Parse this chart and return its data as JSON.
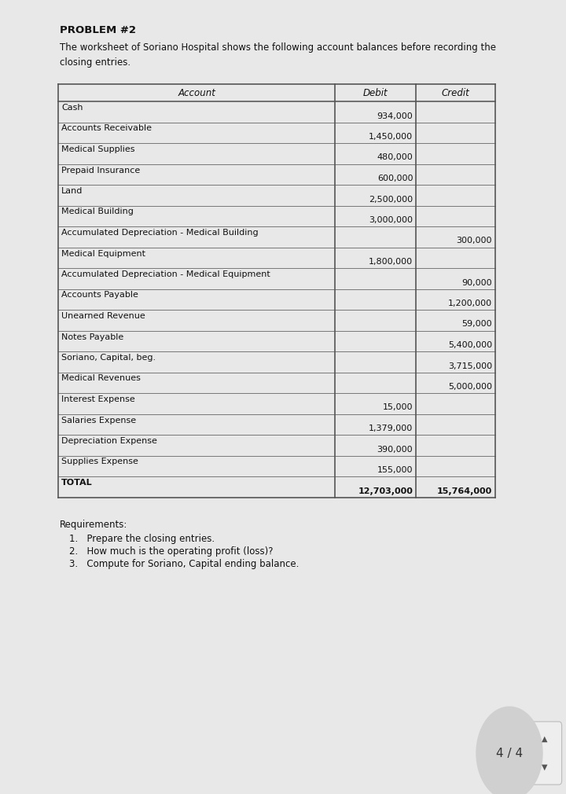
{
  "title": "PROBLEM #2",
  "subtitle": "The worksheet of Soriano Hospital shows the following account balances before recording the\nclosing entries.",
  "col_headers": [
    "Account",
    "Debit",
    "Credit"
  ],
  "rows": [
    {
      "account": "Cash",
      "debit": "934,000",
      "credit": ""
    },
    {
      "account": "Accounts Receivable",
      "debit": "1,450,000",
      "credit": ""
    },
    {
      "account": "Medical Supplies",
      "debit": "480,000",
      "credit": ""
    },
    {
      "account": "Prepaid Insurance",
      "debit": "600,000",
      "credit": ""
    },
    {
      "account": "Land",
      "debit": "2,500,000",
      "credit": ""
    },
    {
      "account": "Medical Building",
      "debit": "3,000,000",
      "credit": ""
    },
    {
      "account": "Accumulated Depreciation - Medical Building",
      "debit": "",
      "credit": "300,000"
    },
    {
      "account": "Medical Equipment",
      "debit": "1,800,000",
      "credit": ""
    },
    {
      "account": "Accumulated Depreciation - Medical Equipment",
      "debit": "",
      "credit": "90,000"
    },
    {
      "account": "Accounts Payable",
      "debit": "",
      "credit": "1,200,000"
    },
    {
      "account": "Unearned Revenue",
      "debit": "",
      "credit": "59,000"
    },
    {
      "account": "Notes Payable",
      "debit": "",
      "credit": "5,400,000"
    },
    {
      "account": "Soriano, Capital, beg.",
      "debit": "",
      "credit": "3,715,000"
    },
    {
      "account": "Medical Revenues",
      "debit": "",
      "credit": "5,000,000"
    },
    {
      "account": "Interest Expense",
      "debit": "15,000",
      "credit": ""
    },
    {
      "account": "Salaries Expense",
      "debit": "1,379,000",
      "credit": ""
    },
    {
      "account": "Depreciation Expense",
      "debit": "390,000",
      "credit": ""
    },
    {
      "account": "Supplies Expense",
      "debit": "155,000",
      "credit": ""
    },
    {
      "account": "TOTAL",
      "debit": "12,703,000",
      "credit": "15,764,000"
    }
  ],
  "requirements_title": "Requirements:",
  "requirements": [
    "1.   Prepare the closing entries.",
    "2.   How much is the operating profit (loss)?",
    "3.   Compute for Soriano, Capital ending balance."
  ],
  "page_indicator": "4 / 4",
  "page_bg": "#e8e8e8",
  "content_bg": "#ffffff",
  "border_color": "#888888",
  "header_font_size": 8.5,
  "row_font_size": 8.0,
  "title_font_size": 9.5,
  "subtitle_font_size": 8.5,
  "req_font_size": 8.5
}
